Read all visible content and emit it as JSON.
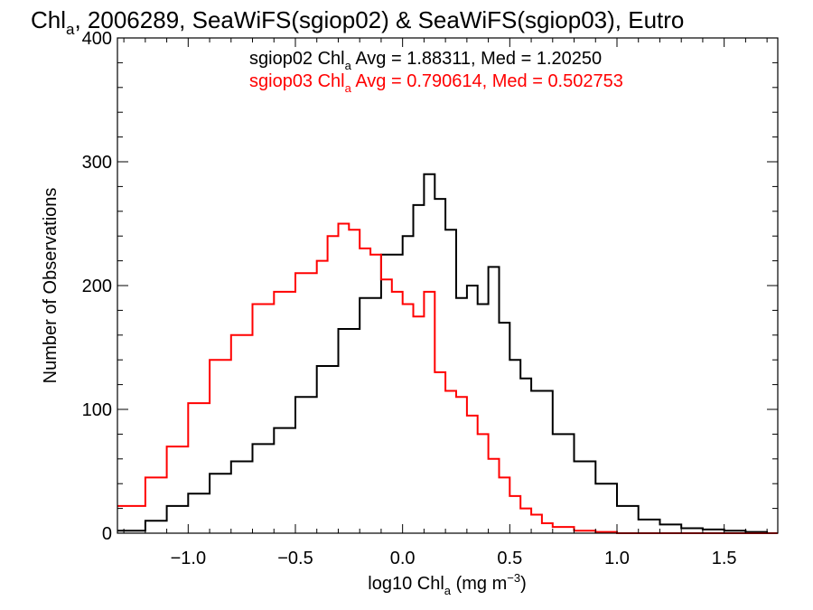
{
  "chart_data": {
    "type": "line",
    "title": {
      "pre": "Chl",
      "sub": "a",
      "post": ", 2006289, SeaWiFS(sgiop02) & SeaWiFS(sgiop03), Eutro"
    },
    "xlabel": {
      "pre": "log10 Chl",
      "sub": "a",
      "mid": " (mg m",
      "sup": "−3",
      "post": ")"
    },
    "ylabel": "Number of Observations",
    "xlim": [
      -1.33,
      1.75
    ],
    "ylim": [
      0,
      400
    ],
    "x_ticks": [
      {
        "value": -1.0,
        "label": "−1.0"
      },
      {
        "value": -0.5,
        "label": "−0.5"
      },
      {
        "value": 0.0,
        "label": "0.0"
      },
      {
        "value": 0.5,
        "label": "0.5"
      },
      {
        "value": 1.0,
        "label": "1.0"
      },
      {
        "value": 1.5,
        "label": "1.5"
      }
    ],
    "y_ticks": [
      {
        "value": 0,
        "label": "0"
      },
      {
        "value": 100,
        "label": "100"
      },
      {
        "value": 200,
        "label": "200"
      },
      {
        "value": 300,
        "label": "300"
      },
      {
        "value": 400,
        "label": "400"
      }
    ],
    "annotations": [
      {
        "pre": "sgiop02 Chl",
        "sub": "a",
        "post": " Avg = 1.88311, Med = 1.20250",
        "color": "#000000"
      },
      {
        "pre": "sgiop03 Chl",
        "sub": "a",
        "post": " Avg = 0.790614, Med = 0.502753",
        "color": "#ff0000"
      }
    ],
    "series": [
      {
        "color": "#000000",
        "x": [
          -1.33,
          -1.2,
          -1.1,
          -1.0,
          -0.9,
          -0.8,
          -0.7,
          -0.6,
          -0.5,
          -0.4,
          -0.3,
          -0.2,
          -0.1,
          0.0,
          0.05,
          0.1,
          0.15,
          0.2,
          0.25,
          0.3,
          0.35,
          0.4,
          0.45,
          0.5,
          0.55,
          0.6,
          0.7,
          0.8,
          0.9,
          1.0,
          1.1,
          1.2,
          1.3,
          1.4,
          1.5,
          1.6,
          1.7,
          1.75
        ],
        "y": [
          2,
          10,
          22,
          32,
          48,
          58,
          72,
          85,
          110,
          135,
          165,
          190,
          225,
          240,
          265,
          290,
          270,
          245,
          190,
          200,
          185,
          215,
          170,
          140,
          125,
          115,
          80,
          58,
          40,
          22,
          11,
          7,
          4,
          3,
          2,
          1,
          0,
          0
        ]
      },
      {
        "color": "#ff0000",
        "x": [
          -1.33,
          -1.2,
          -1.1,
          -1.0,
          -0.9,
          -0.8,
          -0.7,
          -0.6,
          -0.5,
          -0.4,
          -0.35,
          -0.3,
          -0.25,
          -0.2,
          -0.15,
          -0.1,
          -0.05,
          0.0,
          0.05,
          0.1,
          0.15,
          0.2,
          0.25,
          0.3,
          0.35,
          0.4,
          0.45,
          0.5,
          0.55,
          0.6,
          0.65,
          0.7,
          0.8,
          0.9,
          1.0,
          1.1,
          1.75
        ],
        "y": [
          22,
          45,
          70,
          105,
          140,
          160,
          185,
          195,
          210,
          220,
          240,
          250,
          245,
          230,
          225,
          205,
          195,
          185,
          175,
          195,
          130,
          115,
          110,
          95,
          80,
          60,
          45,
          30,
          20,
          15,
          8,
          5,
          2,
          1,
          0,
          0,
          0
        ]
      }
    ]
  }
}
